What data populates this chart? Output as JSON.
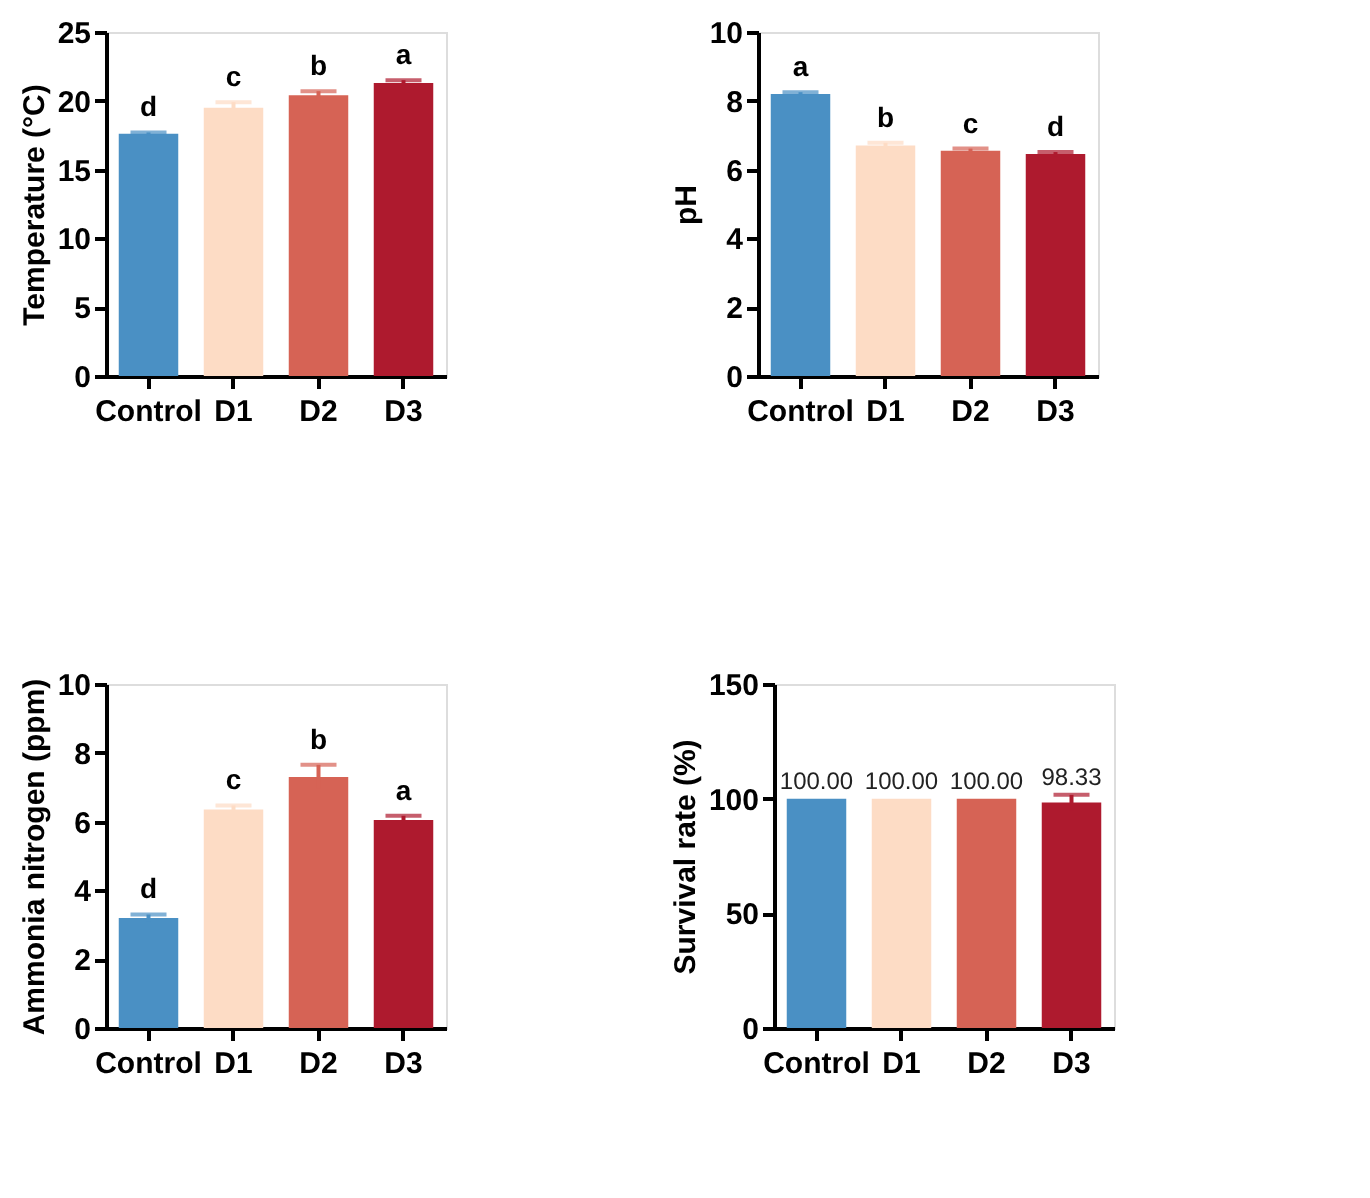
{
  "chart_data": [
    {
      "type": "bar",
      "ylabel": "Temperature (°C)",
      "categories": [
        "Control",
        "D1",
        "D2",
        "D3"
      ],
      "values": [
        17.6,
        19.5,
        20.4,
        21.3
      ],
      "errors": [
        0.1,
        0.4,
        0.3,
        0.2
      ],
      "colors": [
        "#4a90c4",
        "#fddcc5",
        "#d66355",
        "#ae1a2e"
      ],
      "ylim": [
        0,
        25
      ],
      "yticks": [
        0,
        5,
        10,
        15,
        20,
        25
      ],
      "grid": false,
      "annotations": [
        {
          "text": "d",
          "x": "Control",
          "y": 17.7
        },
        {
          "text": "c",
          "x": "D1",
          "y": 19.9
        },
        {
          "text": "b",
          "x": "D2",
          "y": 20.7
        },
        {
          "text": "a",
          "x": "D3",
          "y": 21.5
        }
      ]
    },
    {
      "type": "bar",
      "ylabel": "pH",
      "categories": [
        "Control",
        "D1",
        "D2",
        "D3"
      ],
      "values": [
        8.2,
        6.7,
        6.55,
        6.45
      ],
      "errors": [
        0.05,
        0.08,
        0.06,
        0.06
      ],
      "colors": [
        "#4a90c4",
        "#fddcc5",
        "#d66355",
        "#ae1a2e"
      ],
      "ylim": [
        0,
        10
      ],
      "yticks": [
        0,
        2,
        4,
        6,
        8,
        10
      ],
      "grid": false,
      "annotations": [
        {
          "text": "a",
          "x": "Control",
          "y": 8.25
        },
        {
          "text": "b",
          "x": "D1",
          "y": 6.78
        },
        {
          "text": "c",
          "x": "D2",
          "y": 6.61
        },
        {
          "text": "d",
          "x": "D3",
          "y": 6.51
        }
      ]
    },
    {
      "type": "bar",
      "ylabel": "Ammonia nitrogen (ppm)",
      "categories": [
        "Control",
        "D1",
        "D2",
        "D3"
      ],
      "values": [
        3.2,
        6.35,
        7.3,
        6.05
      ],
      "errors": [
        0.1,
        0.12,
        0.35,
        0.12
      ],
      "colors": [
        "#4a90c4",
        "#fddcc5",
        "#d66355",
        "#ae1a2e"
      ],
      "ylim": [
        0,
        10
      ],
      "yticks": [
        0,
        2,
        4,
        6,
        8,
        10
      ],
      "grid": false,
      "annotations": [
        {
          "text": "d",
          "x": "Control",
          "y": 3.3
        },
        {
          "text": "c",
          "x": "D1",
          "y": 6.47
        },
        {
          "text": "b",
          "x": "D2",
          "y": 7.65
        },
        {
          "text": "a",
          "x": "D3",
          "y": 6.17
        }
      ]
    },
    {
      "type": "bar",
      "ylabel": "Survival rate (%)",
      "categories": [
        "Control",
        "D1",
        "D2",
        "D3"
      ],
      "values": [
        100,
        100,
        100,
        98.33
      ],
      "errors": [
        null,
        null,
        null,
        3.33
      ],
      "value_labels": [
        "100.00",
        "100.00",
        "100.00",
        "98.33"
      ],
      "colors": [
        "#4a90c4",
        "#fddcc5",
        "#d66355",
        "#ae1a2e"
      ],
      "ylim": [
        0,
        150
      ],
      "yticks": [
        0,
        50,
        100,
        150
      ],
      "grid": false
    }
  ]
}
